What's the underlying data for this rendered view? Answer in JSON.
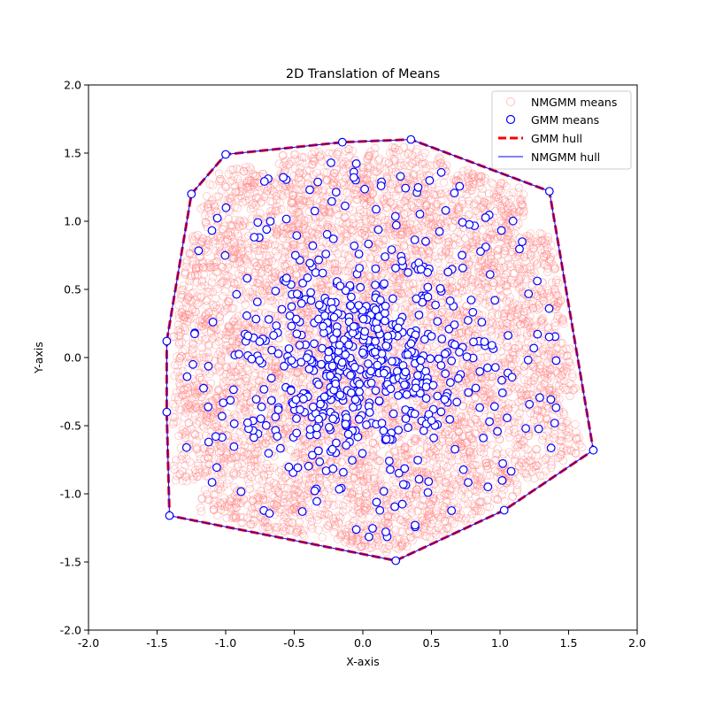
{
  "chart_data": {
    "type": "scatter",
    "title": "2D Translation of Means",
    "xlabel": "X-axis",
    "ylabel": "Y-axis",
    "xlim": [
      -2.0,
      2.0
    ],
    "ylim": [
      -2.0,
      2.0
    ],
    "xticks": [
      "-2.0",
      "-1.5",
      "-1.0",
      "-0.5",
      "0.0",
      "0.5",
      "1.0",
      "1.5",
      "2.0"
    ],
    "yticks": [
      "-2.0",
      "-1.5",
      "-1.0",
      "-0.5",
      "0.0",
      "0.5",
      "1.0",
      "1.5",
      "2.0"
    ],
    "grid": false,
    "legend_position": "upper right",
    "colors": {
      "nmgmm_means": "#ff7f7f",
      "gmm_means_edge": "#0000ff",
      "gmm_hull": "#ff0000",
      "nmgmm_hull": "#0000ff"
    },
    "series": [
      {
        "name": "NMGMM means",
        "marker": "open-circle",
        "approx_count": 6000,
        "region": "dense cloud filling the hull, spiky star-like outline"
      },
      {
        "name": "GMM means",
        "marker": "open-circle",
        "approx_count": 700,
        "region": "denser near origin, sparser toward the hull"
      },
      {
        "name": "GMM hull",
        "style": "dashed",
        "points": [
          {
            "x": -1.43,
            "y": 0.12
          },
          {
            "x": -1.25,
            "y": 1.2
          },
          {
            "x": -1.0,
            "y": 1.49
          },
          {
            "x": -0.15,
            "y": 1.58
          },
          {
            "x": 0.35,
            "y": 1.6
          },
          {
            "x": 1.36,
            "y": 1.22
          },
          {
            "x": 1.68,
            "y": -0.68
          },
          {
            "x": 1.03,
            "y": -1.12
          },
          {
            "x": 0.24,
            "y": -1.49
          },
          {
            "x": -1.41,
            "y": -1.16
          },
          {
            "x": -1.43,
            "y": -0.4
          },
          {
            "x": -1.43,
            "y": 0.12
          }
        ]
      },
      {
        "name": "NMGMM hull",
        "style": "solid",
        "points": [
          {
            "x": -1.43,
            "y": 0.12
          },
          {
            "x": -1.25,
            "y": 1.2
          },
          {
            "x": -1.0,
            "y": 1.49
          },
          {
            "x": -0.15,
            "y": 1.58
          },
          {
            "x": 0.35,
            "y": 1.6
          },
          {
            "x": 1.36,
            "y": 1.22
          },
          {
            "x": 1.68,
            "y": -0.68
          },
          {
            "x": 1.03,
            "y": -1.12
          },
          {
            "x": 0.24,
            "y": -1.49
          },
          {
            "x": -1.41,
            "y": -1.16
          },
          {
            "x": -1.43,
            "y": -0.4
          },
          {
            "x": -1.43,
            "y": 0.12
          }
        ]
      }
    ]
  }
}
